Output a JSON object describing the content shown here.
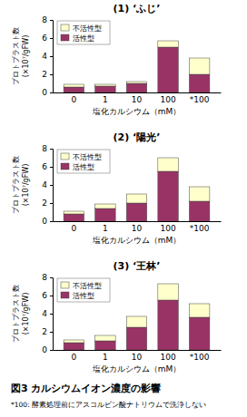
{
  "chart_data": [
    {
      "type": "bar",
      "stacked": true,
      "title": "(1) ‘ふじ’",
      "categories": [
        "0",
        "1",
        "10",
        "100",
        "*100"
      ],
      "series": [
        {
          "name": "活性型",
          "color": "#993366",
          "values": [
            0.6,
            0.7,
            1.0,
            5.0,
            2.0
          ]
        },
        {
          "name": "不活性型",
          "color": "#ffffcc",
          "values": [
            0.3,
            0.2,
            0.2,
            0.7,
            1.8
          ]
        }
      ],
      "ylim": [
        0,
        8
      ],
      "yticks": [
        0,
        2,
        4,
        6,
        8
      ],
      "xlabel": "塩化カルシウム（mM）",
      "ylabel": [
        "プロトプラスト数",
        "(×10⁷/gFW)"
      ],
      "legend": "upper left"
    },
    {
      "type": "bar",
      "stacked": true,
      "title": "(2) ‘陽光’",
      "categories": [
        "0",
        "1",
        "10",
        "100",
        "*100"
      ],
      "series": [
        {
          "name": "活性型",
          "color": "#993366",
          "values": [
            0.8,
            1.4,
            2.0,
            5.5,
            2.2
          ]
        },
        {
          "name": "不活性型",
          "color": "#ffffcc",
          "values": [
            0.3,
            0.5,
            1.0,
            1.5,
            1.6
          ]
        }
      ],
      "ylim": [
        0,
        8
      ],
      "yticks": [
        0,
        2,
        4,
        6,
        8
      ],
      "xlabel": "塩化カルシウム（mM）",
      "ylabel": [
        "プロトプラスト数",
        "(×10⁷/gFW)"
      ],
      "legend": "upper left"
    },
    {
      "type": "bar",
      "stacked": true,
      "title": "(3) ‘王林’",
      "categories": [
        "0",
        "1",
        "10",
        "100",
        "*100"
      ],
      "series": [
        {
          "name": "活性型",
          "color": "#993366",
          "values": [
            0.8,
            1.0,
            2.5,
            5.5,
            3.6
          ]
        },
        {
          "name": "不活性型",
          "color": "#ffffcc",
          "values": [
            0.3,
            0.6,
            1.2,
            1.8,
            1.5
          ]
        }
      ],
      "ylim": [
        0,
        8
      ],
      "yticks": [
        0,
        2,
        4,
        6,
        8
      ],
      "xlabel": "塩化カルシウム（mM）",
      "ylabel": [
        "プロトプラスト数",
        "(×10⁷/gFW)"
      ],
      "legend": "upper left"
    }
  ],
  "caption": "図3 カルシウムイオン濃度の影響",
  "note": "*100: 酵素処理前にアスコルビン酸ナトリウムで洗浄しない"
}
